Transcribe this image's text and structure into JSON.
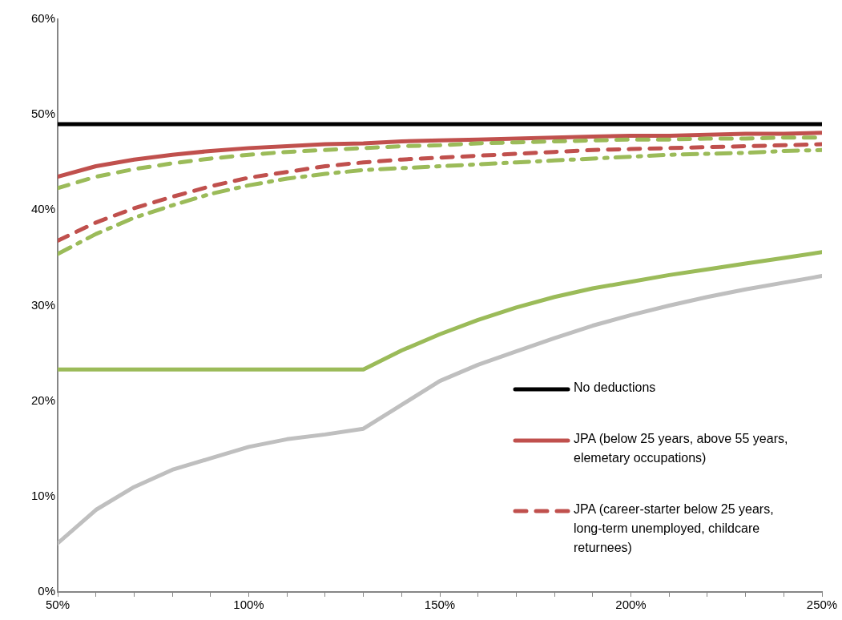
{
  "chart_data": {
    "type": "line",
    "x": [
      50,
      60,
      70,
      80,
      90,
      100,
      110,
      120,
      130,
      140,
      150,
      160,
      170,
      180,
      190,
      200,
      210,
      220,
      230,
      240,
      250
    ],
    "xlim": [
      50,
      250
    ],
    "xticks": [
      {
        "value": 50,
        "label": "50%"
      },
      {
        "value": 60,
        "label": null
      },
      {
        "value": 70,
        "label": null
      },
      {
        "value": 80,
        "label": null
      },
      {
        "value": 90,
        "label": null
      },
      {
        "value": 100,
        "label": "100%"
      },
      {
        "value": 110,
        "label": null
      },
      {
        "value": 120,
        "label": null
      },
      {
        "value": 130,
        "label": null
      },
      {
        "value": 140,
        "label": null
      },
      {
        "value": 150,
        "label": "150%"
      },
      {
        "value": 160,
        "label": null
      },
      {
        "value": 170,
        "label": null
      },
      {
        "value": 180,
        "label": null
      },
      {
        "value": 190,
        "label": null
      },
      {
        "value": 200,
        "label": "200%"
      },
      {
        "value": 210,
        "label": null
      },
      {
        "value": 220,
        "label": null
      },
      {
        "value": 230,
        "label": null
      },
      {
        "value": 240,
        "label": null
      },
      {
        "value": 250,
        "label": "250%"
      }
    ],
    "ylim": [
      0,
      60
    ],
    "yticks": [
      {
        "value": 0,
        "label": "0%"
      },
      {
        "value": 10,
        "label": "10%"
      },
      {
        "value": 20,
        "label": "20%"
      },
      {
        "value": 30,
        "label": "30%"
      },
      {
        "value": 40,
        "label": "40%"
      },
      {
        "value": 50,
        "label": "50%"
      },
      {
        "value": 60,
        "label": "60%"
      }
    ],
    "grid": false,
    "legend": "bottom right",
    "marker": "none",
    "series": [
      {
        "name": "No deductions",
        "color": "#000000",
        "line_style": "solid",
        "values": [
          49,
          49,
          49,
          49,
          49,
          49,
          49,
          49,
          49,
          49,
          49,
          49,
          49,
          49,
          49,
          49,
          49,
          49,
          49,
          49,
          49
        ]
      },
      {
        "name": "JPA (below 25 years, above 55 years, elemetary occupations)",
        "color": "#c0504d",
        "line_style": "solid",
        "values": [
          43.5,
          44.6,
          45.3,
          45.8,
          46.2,
          46.5,
          46.7,
          46.9,
          47.0,
          47.2,
          47.3,
          47.4,
          47.5,
          47.6,
          47.7,
          47.8,
          47.8,
          47.9,
          48.0,
          48.0,
          48.1
        ]
      },
      {
        "name": "JPA (career-starter below 25 years, long-term unemployed, childcare returnees)",
        "color": "#c0504d",
        "line_style": "dashed",
        "values": [
          36.8,
          38.7,
          40.2,
          41.4,
          42.5,
          43.4,
          44.0,
          44.6,
          45.0,
          45.3,
          45.5,
          45.7,
          45.9,
          46.1,
          46.3,
          46.4,
          46.5,
          46.6,
          46.7,
          46.8,
          46.9
        ]
      },
      {
        "color": "#9bbb59",
        "line_style": "dashed",
        "values": [
          42.3,
          43.5,
          44.3,
          44.9,
          45.4,
          45.8,
          46.1,
          46.3,
          46.5,
          46.7,
          46.8,
          47.0,
          47.1,
          47.2,
          47.3,
          47.4,
          47.4,
          47.5,
          47.5,
          47.6,
          47.6
        ]
      },
      {
        "color": "#9bbb59",
        "line_style": "dashdot",
        "values": [
          35.4,
          37.5,
          39.2,
          40.5,
          41.7,
          42.6,
          43.3,
          43.8,
          44.2,
          44.4,
          44.6,
          44.8,
          45.0,
          45.2,
          45.4,
          45.6,
          45.8,
          45.9,
          46.0,
          46.2,
          46.3
        ]
      },
      {
        "color": "#9bbb59",
        "line_style": "solid",
        "values": [
          23.3,
          23.3,
          23.3,
          23.3,
          23.3,
          23.3,
          23.3,
          23.3,
          23.3,
          25.3,
          27.0,
          28.5,
          29.8,
          30.9,
          31.8,
          32.5,
          33.2,
          33.8,
          34.4,
          35.0,
          35.6
        ]
      },
      {
        "color": "#bfbfbf",
        "line_style": "solid",
        "values": [
          5.1,
          8.6,
          11.0,
          12.8,
          14.0,
          15.2,
          16.0,
          16.5,
          17.1,
          19.6,
          22.1,
          23.8,
          25.2,
          26.6,
          27.9,
          29.0,
          30.0,
          30.9,
          31.7,
          32.4,
          33.1
        ]
      }
    ]
  }
}
